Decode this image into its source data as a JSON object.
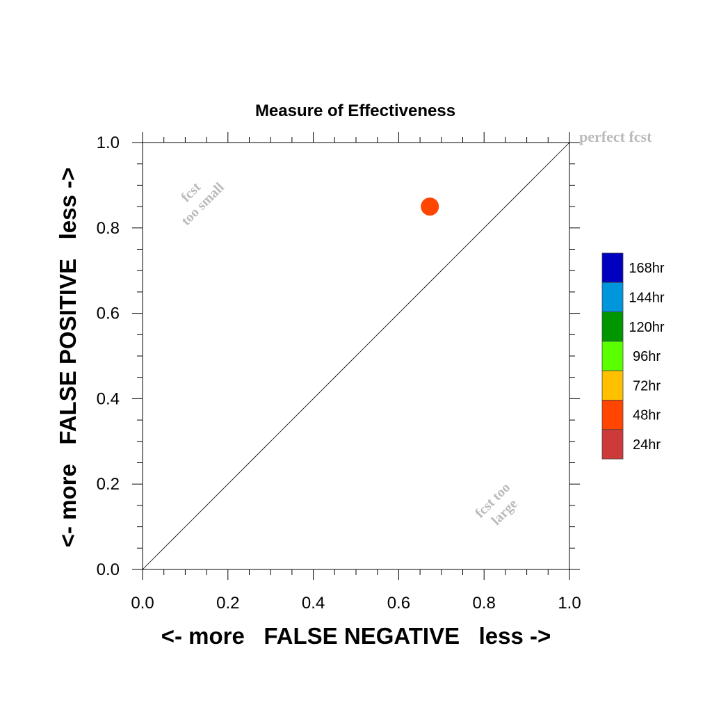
{
  "chart_data": {
    "type": "scatter",
    "title": "Measure of Effectiveness",
    "xlabel": "<- more   FALSE NEGATIVE   less ->",
    "ylabel": "<- more   FALSE POSITIVE   less ->",
    "xlim": [
      0.0,
      1.0
    ],
    "ylim": [
      0.0,
      1.0
    ],
    "x_ticks": [
      "0.0",
      "0.2",
      "0.4",
      "0.6",
      "0.8",
      "1.0"
    ],
    "y_ticks": [
      "0.0",
      "0.2",
      "0.4",
      "0.6",
      "0.8",
      "1.0"
    ],
    "grid": false,
    "diagonal_line": true,
    "annotations": {
      "perfect": "perfect fcst",
      "small_line1": "fcst",
      "small_line2": "too small",
      "large_line1": "fcst too",
      "large_line2": "large"
    },
    "legend": {
      "placement": "right",
      "items": [
        {
          "label": "168hr",
          "color": "#0000c0"
        },
        {
          "label": "144hr",
          "color": "#0096db"
        },
        {
          "label": "120hr",
          "color": "#009600"
        },
        {
          "label": "96hr",
          "color": "#5aff00"
        },
        {
          "label": "72hr",
          "color": "#ffc000"
        },
        {
          "label": "48hr",
          "color": "#ff4500"
        },
        {
          "label": "24hr",
          "color": "#cc3a3a"
        }
      ]
    },
    "points": [
      {
        "x": 0.673,
        "y": 0.85,
        "color": "#ff4500"
      }
    ]
  }
}
